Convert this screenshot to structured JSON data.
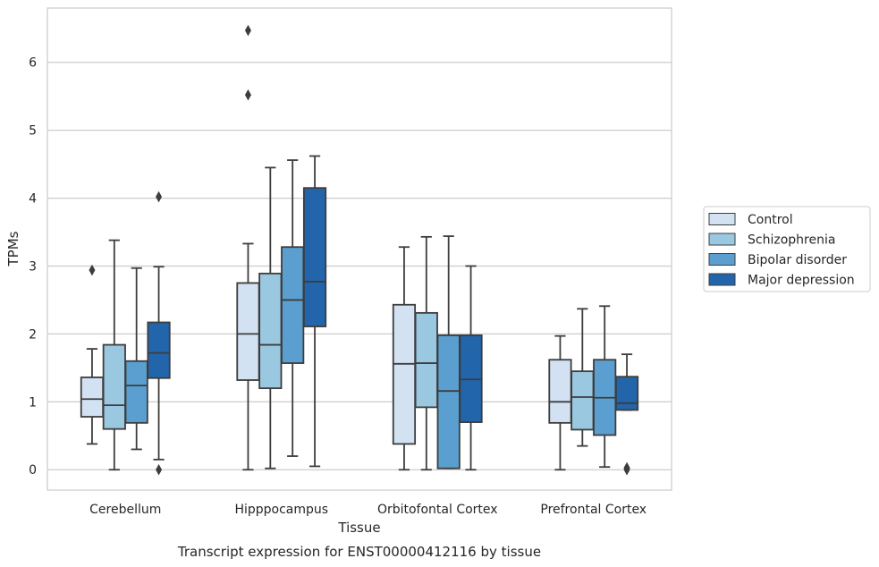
{
  "chart_data": {
    "type": "box",
    "title": "",
    "caption": "Transcript expression for ENST00000412116 by tissue",
    "xlabel": "Tissue",
    "ylabel": "TPMs",
    "ylim": [
      -0.3,
      6.8
    ],
    "yticks": [
      0,
      1,
      2,
      3,
      4,
      5,
      6
    ],
    "grid": "horizontal",
    "legend_position": "right",
    "categories": [
      "Cerebellum",
      "Hipppocampus",
      "Orbitofontal Cortex",
      "Prefrontal Cortex"
    ],
    "series": [
      {
        "name": "Control",
        "color": "#d2e2f2",
        "boxes": [
          {
            "min": 0.38,
            "q1": 0.78,
            "median": 1.04,
            "q3": 1.36,
            "max": 1.78,
            "outliers": [
              2.94
            ]
          },
          {
            "min": 0.0,
            "q1": 1.32,
            "median": 2.0,
            "q3": 2.75,
            "max": 3.33,
            "outliers": [
              5.52,
              6.47
            ]
          },
          {
            "min": 0.0,
            "q1": 0.38,
            "median": 1.56,
            "q3": 2.43,
            "max": 3.28,
            "outliers": []
          },
          {
            "min": 0.0,
            "q1": 0.69,
            "median": 1.0,
            "q3": 1.62,
            "max": 1.97,
            "outliers": []
          }
        ]
      },
      {
        "name": "Schizophrenia",
        "color": "#9ac8e0",
        "boxes": [
          {
            "min": 0.0,
            "q1": 0.6,
            "median": 0.95,
            "q3": 1.84,
            "max": 3.38,
            "outliers": []
          },
          {
            "min": 0.02,
            "q1": 1.2,
            "median": 1.84,
            "q3": 2.89,
            "max": 4.45,
            "outliers": []
          },
          {
            "min": 0.0,
            "q1": 0.92,
            "median": 1.57,
            "q3": 2.31,
            "max": 3.43,
            "outliers": []
          },
          {
            "min": 0.35,
            "q1": 0.59,
            "median": 1.07,
            "q3": 1.45,
            "max": 2.37,
            "outliers": []
          }
        ]
      },
      {
        "name": "Bipolar disorder",
        "color": "#5a9fcf",
        "boxes": [
          {
            "min": 0.3,
            "q1": 0.69,
            "median": 1.24,
            "q3": 1.6,
            "max": 2.97,
            "outliers": []
          },
          {
            "min": 0.2,
            "q1": 1.57,
            "median": 2.5,
            "q3": 3.28,
            "max": 4.56,
            "outliers": []
          },
          {
            "min": 0.02,
            "q1": 0.02,
            "median": 1.16,
            "q3": 1.98,
            "max": 3.44,
            "outliers": []
          },
          {
            "min": 0.04,
            "q1": 0.51,
            "median": 1.06,
            "q3": 1.62,
            "max": 2.41,
            "outliers": []
          }
        ]
      },
      {
        "name": "Major depression",
        "color": "#2265ab",
        "boxes": [
          {
            "min": 0.15,
            "q1": 1.35,
            "median": 1.72,
            "q3": 2.17,
            "max": 2.99,
            "outliers": [
              4.02,
              0.0
            ]
          },
          {
            "min": 0.05,
            "q1": 2.11,
            "median": 2.77,
            "q3": 4.15,
            "max": 4.62,
            "outliers": []
          },
          {
            "min": 0.0,
            "q1": 0.7,
            "median": 1.33,
            "q3": 1.98,
            "max": 3.0,
            "outliers": []
          },
          {
            "min": 0.88,
            "q1": 0.88,
            "median": 0.98,
            "q3": 1.37,
            "max": 1.7,
            "outliers": [
              0.02,
              0.0,
              0.03
            ]
          }
        ]
      }
    ]
  }
}
